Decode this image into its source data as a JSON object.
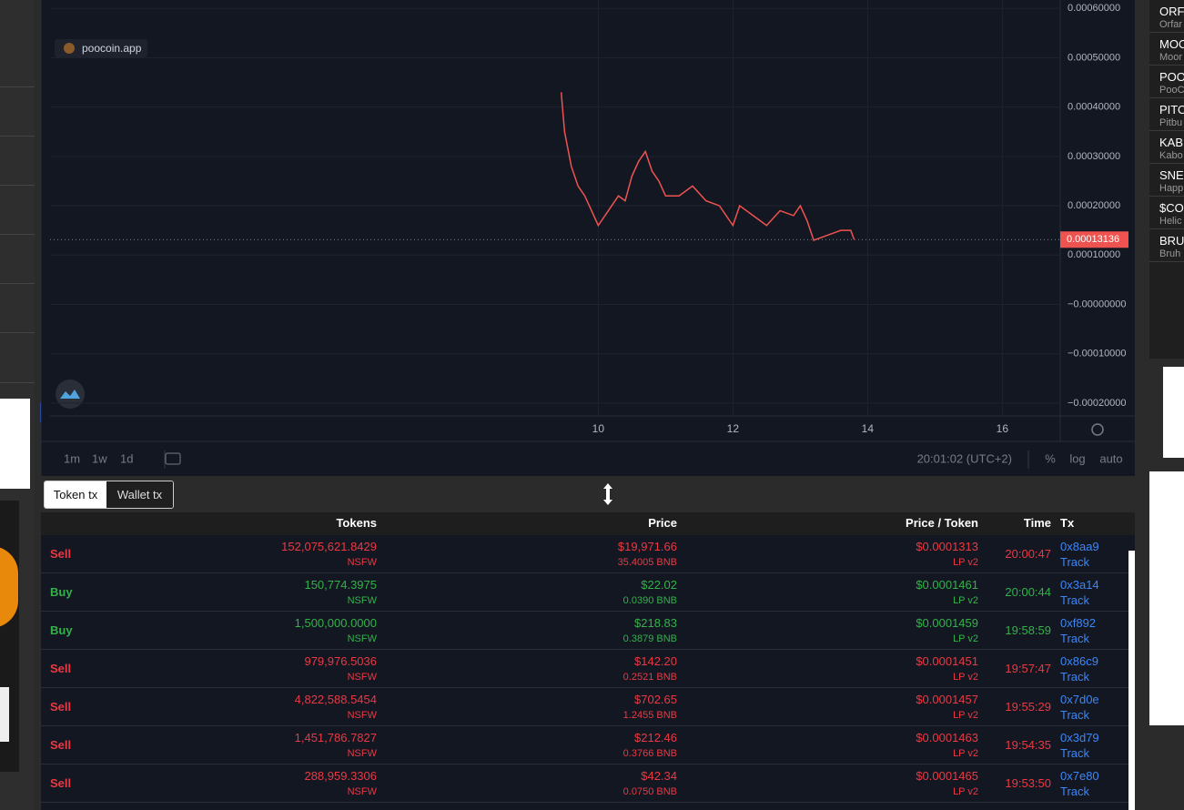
{
  "chart_data": {
    "type": "line",
    "watermark": "poocoin.app",
    "x": [
      9.45,
      9.5,
      9.6,
      9.7,
      9.8,
      9.9,
      10.0,
      10.1,
      10.2,
      10.3,
      10.4,
      10.5,
      10.6,
      10.7,
      10.8,
      10.9,
      11.0,
      11.2,
      11.4,
      11.6,
      11.8,
      12.0,
      12.1,
      12.3,
      12.5,
      12.7,
      12.9,
      13.0,
      13.1,
      13.2,
      13.4,
      13.6,
      13.75,
      13.8
    ],
    "values": [
      0.00043,
      0.00035,
      0.00028,
      0.00024,
      0.00022,
      0.00019,
      0.00016,
      0.00018,
      0.0002,
      0.00022,
      0.00021,
      0.00026,
      0.00029,
      0.00031,
      0.00027,
      0.00025,
      0.00022,
      0.00022,
      0.00024,
      0.00021,
      0.0002,
      0.00016,
      0.0002,
      0.00018,
      0.00016,
      0.00019,
      0.00018,
      0.0002,
      0.00017,
      0.00013,
      0.00014,
      0.00015,
      0.00015,
      0.00013136
    ],
    "color": "#ef5350",
    "xlim": [
      1.86,
      16.86
    ],
    "xticks": [
      10,
      12,
      14,
      16
    ],
    "ylim": [
      -0.000226,
      0.000617
    ],
    "yticks": [
      {
        "value": 0.0006,
        "label": "0.00060000"
      },
      {
        "value": 0.0005,
        "label": "0.00050000"
      },
      {
        "value": 0.0004,
        "label": "0.00040000"
      },
      {
        "value": 0.0003,
        "label": "0.00030000"
      },
      {
        "value": 0.0002,
        "label": "0.00020000"
      },
      {
        "value": 0.0001,
        "label": "0.00010000"
      },
      {
        "value": 0,
        "label": "−0.00000000"
      },
      {
        "value": -0.0001,
        "label": "−0.00010000"
      },
      {
        "value": -0.0002,
        "label": "−0.00020000"
      }
    ],
    "grid": true
  },
  "toolbar": {
    "intervals": [
      "1m",
      "1w",
      "1d"
    ],
    "clock": "20:01:02 (UTC+2)",
    "options": [
      "%",
      "log",
      "auto"
    ]
  },
  "tabs": [
    "Token tx",
    "Wallet tx"
  ],
  "table": {
    "headers": [
      "Tokens",
      "Price",
      "Price / Token",
      "Time",
      "Tx"
    ],
    "rows": [
      [
        "Sell",
        "152,075,621.8429",
        "NSFW",
        "$19,971.66",
        "35.4005 BNB",
        "$0.0001313",
        "LP v2",
        "20:00:47",
        "0x8aa9",
        "Track"
      ],
      [
        "Buy",
        "150,774.3975",
        "NSFW",
        "$22.02",
        "0.0390 BNB",
        "$0.0001461",
        "LP v2",
        "20:00:44",
        "0x3a14",
        "Track"
      ],
      [
        "Buy",
        "1,500,000.0000",
        "NSFW",
        "$218.83",
        "0.3879 BNB",
        "$0.0001459",
        "LP v2",
        "19:58:59",
        "0xf892",
        "Track"
      ],
      [
        "Sell",
        "979,976.5036",
        "NSFW",
        "$142.20",
        "0.2521 BNB",
        "$0.0001451",
        "LP v2",
        "19:57:47",
        "0x86c9",
        "Track"
      ],
      [
        "Sell",
        "4,822,588.5454",
        "NSFW",
        "$702.65",
        "1.2455 BNB",
        "$0.0001457",
        "LP v2",
        "19:55:29",
        "0x7d0e",
        "Track"
      ],
      [
        "Sell",
        "1,451,786.7827",
        "NSFW",
        "$212.46",
        "0.3766 BNB",
        "$0.0001463",
        "LP v2",
        "19:54:35",
        "0x3d79",
        "Track"
      ],
      [
        "Sell",
        "288,959.3306",
        "NSFW",
        "$42.34",
        "0.0750 BNB",
        "$0.0001465",
        "LP v2",
        "19:53:50",
        "0x7e80",
        "Track"
      ]
    ]
  },
  "token_list": [
    {
      "symbol": "ORFA",
      "name": "Orfar"
    },
    {
      "symbol": "MOO",
      "name": "Moor"
    },
    {
      "symbol": "POO",
      "name": "PooC"
    },
    {
      "symbol": "PITO",
      "name": "Pitbu"
    },
    {
      "symbol": "KAB",
      "name": "Kabo"
    },
    {
      "symbol": "SNE",
      "name": "Happ"
    },
    {
      "symbol": "$CO",
      "name": "Helic"
    },
    {
      "symbol": "BRU",
      "name": "Bruh"
    }
  ]
}
